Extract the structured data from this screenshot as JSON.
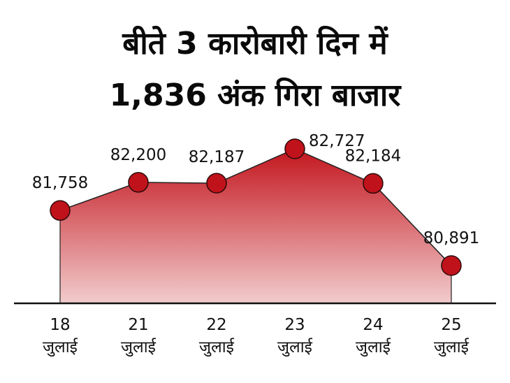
{
  "title_line_1": "बीते 3 कारोबारी दिन में",
  "title_line_2": "1,836 अंक गिरा बाजार",
  "colors": {
    "marker": "#c0121b",
    "area_top": "#c3161e",
    "area_bottom": "#f2cccd",
    "line": "#222222",
    "baseline": "#111111"
  },
  "chart_data": {
    "type": "area",
    "categories": [
      "18 जुलाई",
      "21 जुलाई",
      "22 जुलाई",
      "23 जुलाई",
      "24 जुलाई",
      "25 जुलाई"
    ],
    "x_day": [
      "18",
      "21",
      "22",
      "23",
      "24",
      "25"
    ],
    "x_month": [
      "जुलाई",
      "जुलाई",
      "जुलाई",
      "जुलाई",
      "जुलाई",
      "जुलाई"
    ],
    "values": [
      81758,
      82200,
      82187,
      82727,
      82184,
      80891
    ],
    "value_labels": [
      "81,758",
      "82,200",
      "82,187",
      "82,727",
      "82,184",
      "80,891"
    ],
    "title": "बीते 3 कारोबारी दिन में 1,836 अंक गिरा बाजार",
    "xlabel": "",
    "ylabel": "",
    "grid": false,
    "legend": "none",
    "markers": true
  }
}
